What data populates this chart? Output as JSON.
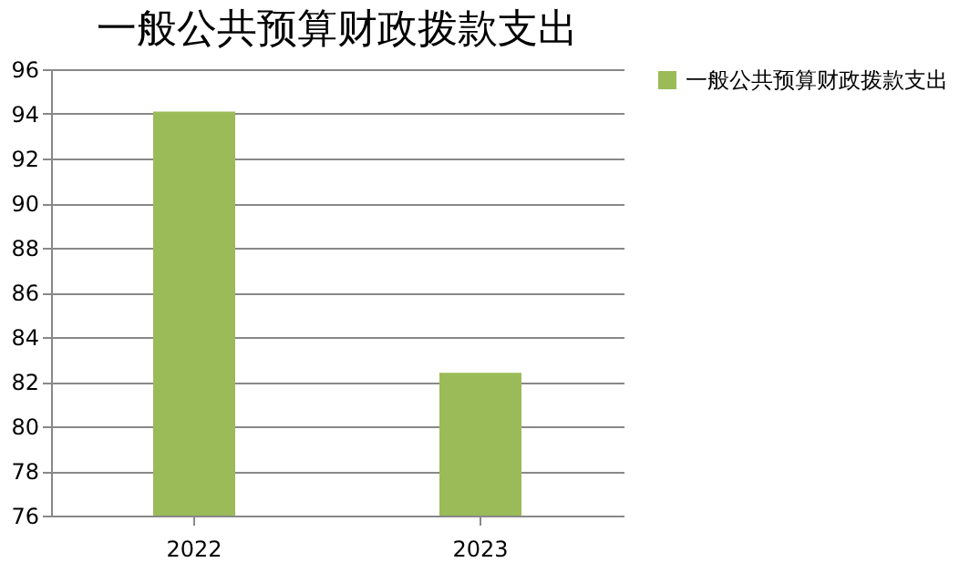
{
  "chart_data": {
    "type": "bar",
    "title": "一般公共预算财政拨款支出",
    "categories": [
      "2022",
      "2023"
    ],
    "series": [
      {
        "name": "一般公共预算财政拨款支出",
        "color": "#9bbb59",
        "values": [
          94.1,
          82.4
        ]
      }
    ],
    "ylim": [
      76,
      96
    ],
    "yticks": [
      76,
      78,
      80,
      82,
      84,
      86,
      88,
      90,
      92,
      94,
      96
    ],
    "grid": "y",
    "legend": "right"
  }
}
